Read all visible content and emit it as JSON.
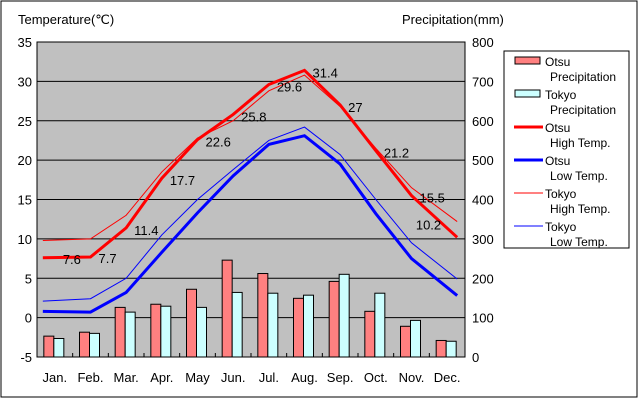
{
  "chart_data": {
    "type": "bar+line",
    "left_axis_label": "Temperature(℃)",
    "right_axis_label": "Precipitation(mm)",
    "categories": [
      "Jan.",
      "Feb.",
      "Mar.",
      "Apr.",
      "May",
      "Jun.",
      "Jul.",
      "Aug.",
      "Sep.",
      "Oct.",
      "Nov.",
      "Dec."
    ],
    "ylim_left": [
      -5,
      35
    ],
    "yticks_left": [
      -5,
      0,
      5,
      10,
      15,
      20,
      25,
      30,
      35
    ],
    "ylim_right": [
      0,
      800
    ],
    "yticks_right": [
      0,
      100,
      200,
      300,
      400,
      500,
      600,
      700,
      800
    ],
    "grid": true,
    "legend_placement": "right",
    "bars": [
      {
        "name": "Otsu Precipitation",
        "legend": [
          "Otsu",
          "Precipitation"
        ],
        "color": "#ff8080",
        "values": [
          53,
          63,
          126,
          134,
          172,
          246,
          212,
          149,
          192,
          116,
          78,
          42
        ]
      },
      {
        "name": "Tokyo Precipitation",
        "legend": [
          "Tokyo",
          "Precipitation"
        ],
        "color": "#ccffff",
        "values": [
          47,
          60,
          114,
          129,
          126,
          164,
          162,
          157,
          210,
          162,
          93,
          40
        ]
      }
    ],
    "lines": [
      {
        "name": "Otsu High Temp.",
        "legend": [
          "Otsu",
          "High Temp."
        ],
        "color": "#ff0000",
        "width": 3,
        "values": [
          7.6,
          7.7,
          11.4,
          17.7,
          22.6,
          25.8,
          29.6,
          31.4,
          27,
          21.2,
          15.5,
          10.2
        ],
        "labels": [
          "7.6",
          "7.7",
          "11.4",
          "17.7",
          "22.6",
          "25.8",
          "29.6",
          "31.4",
          "27",
          "21.2",
          "15.5",
          "10.2"
        ]
      },
      {
        "name": "Otsu Low Temp.",
        "legend": [
          "Otsu",
          "Low Temp."
        ],
        "color": "#0000ff",
        "width": 3,
        "values": [
          0.8,
          0.7,
          3.2,
          8.3,
          13.3,
          18,
          22,
          23.1,
          19.5,
          13.2,
          7.5,
          2.8
        ]
      },
      {
        "name": "Tokyo High Temp.",
        "legend": [
          "Tokyo",
          "High Temp."
        ],
        "color": "#ff0000",
        "width": 1,
        "values": [
          9.8,
          10,
          13,
          18.5,
          22.8,
          25,
          28.8,
          30.8,
          26.8,
          21.5,
          16.5,
          12.2
        ]
      },
      {
        "name": "Tokyo Low Temp.",
        "legend": [
          "Tokyo",
          "Low Temp."
        ],
        "color": "#0000ff",
        "width": 1,
        "values": [
          2.1,
          2.4,
          5,
          10.5,
          15,
          18.8,
          22.5,
          24.2,
          20.7,
          15,
          9.5,
          4.9
        ]
      }
    ]
  }
}
